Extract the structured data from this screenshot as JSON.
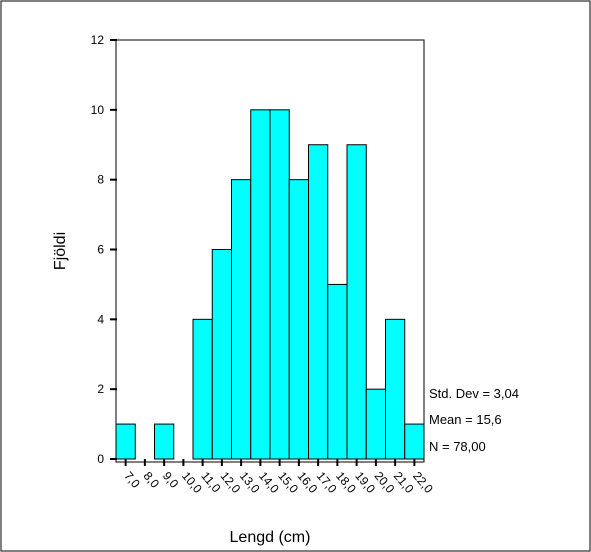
{
  "chart_data": {
    "type": "bar",
    "title": "",
    "xlabel": "Lengd (cm)",
    "ylabel": "Fjöldi",
    "categories": [
      "7,0",
      "8,0",
      "9,0",
      "10,0",
      "11,0",
      "12,0",
      "13,0",
      "14,0",
      "15,0",
      "16,0",
      "17,0",
      "18,0",
      "19,0",
      "20,0",
      "21,0",
      "22,0"
    ],
    "values": [
      1,
      0,
      1,
      0,
      4,
      6,
      8,
      10,
      10,
      8,
      9,
      5,
      9,
      2,
      4,
      1
    ],
    "ylim": [
      0,
      12
    ],
    "yticks": [
      0,
      2,
      4,
      6,
      8,
      10,
      12
    ],
    "grid": false,
    "bar_color": "#00ffff",
    "stats": [
      "Std. Dev = 3,04",
      "Mean = 15,6",
      "N = 78,00"
    ]
  }
}
